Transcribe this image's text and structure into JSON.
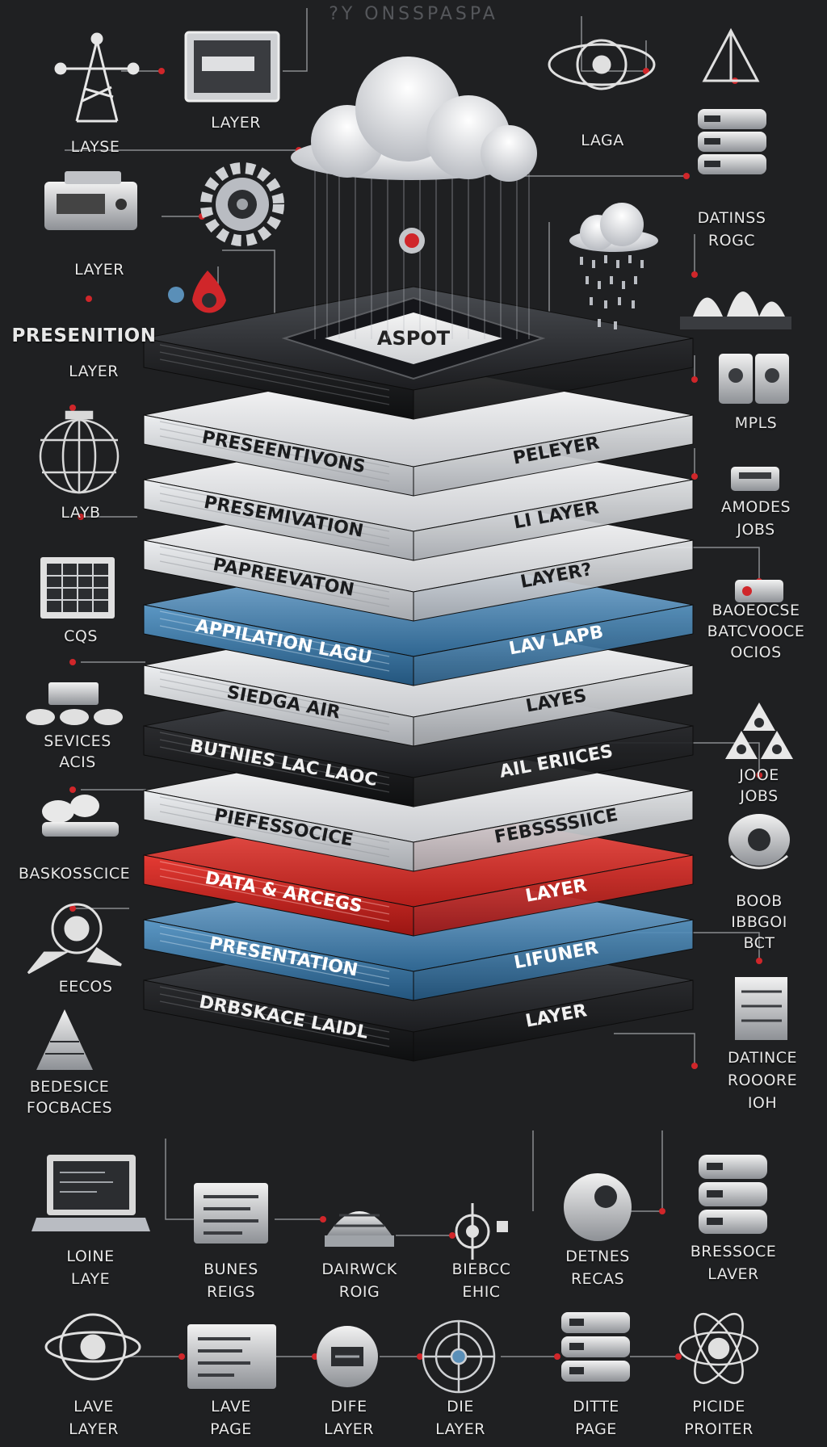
{
  "top_title": "?Y ONSSPASPA",
  "stack": {
    "monitor_text": "ASPOT",
    "layers": [
      {
        "left_text": "PRESEENTIVONS",
        "right_text": "PELEYER"
      },
      {
        "left_text": "PRESEMIVATION",
        "right_text": "LI LAYER"
      },
      {
        "left_text": "PAPREEVATON",
        "right_text": "LAYER?"
      },
      {
        "left_text": "APPILATION LAGU",
        "right_text": "LAV LAPB"
      },
      {
        "left_text": "SIEDGA AIR",
        "right_text": "LAYES"
      },
      {
        "left_text": "BUTNIES LAC LAOC",
        "right_text": "AIL ERIICES"
      },
      {
        "left_text": "PIEFESSOCICE",
        "right_text": "FEBSSSSIICE"
      },
      {
        "left_text": "DATA & ARCEGS",
        "right_text": "LAYER"
      },
      {
        "left_text": "PRESENTATION",
        "right_text": "LIFUNER"
      },
      {
        "left_text": "DRBSKACE LAIDL",
        "right_text": "LAYER"
      }
    ]
  },
  "left_labels": {
    "a": "LAYER",
    "b": "LAYSE",
    "c": "LAYER",
    "d1": "PRESENITION",
    "d2": "LAYER",
    "e": "LAYB",
    "f": "CQS",
    "g1": "SEVICES",
    "g2": "ACIS",
    "h": "BASKOSSCICE",
    "i": "EECOS",
    "j1": "BEDESICE",
    "j2": "FOCBACES"
  },
  "right_labels": {
    "a": "LAGA",
    "b1": "DATINSS",
    "b2": "ROGC",
    "c": "MPLS",
    "d1": "AMODES",
    "d2": "JOBS",
    "e1": "BAOEOCSE",
    "e2": "BATCVOOCE",
    "e3": "OCIOS",
    "f1": "JOOE",
    "f2": "JOBS",
    "g1": "BOOB",
    "g2": "IBBGOI",
    "g3": "BCT",
    "h1": "DATINCE",
    "h2": "ROOORE",
    "h3": "IOH"
  },
  "bottom_row1": {
    "a1": "LOINE",
    "a2": "LAYE",
    "b1": "BUNES",
    "b2": "REIGS",
    "c1": "DAIRWCK",
    "c2": "ROIG",
    "d1": "BIEBCC",
    "d2": "EHIC",
    "e1": "DETNES",
    "e2": "RECAS",
    "f1": "BRESSOCE",
    "f2": "LAVER"
  },
  "bottom_row2": {
    "a1": "LAVE",
    "a2": "LAYER",
    "b1": "LAVE",
    "b2": "PAGE",
    "c1": "DIFE",
    "c2": "LAYER",
    "d1": "DIE",
    "d2": "LAYER",
    "e1": "DITTE",
    "e2": "PAGE",
    "f1": "PICIDE",
    "f2": "PROITER"
  },
  "colors": {
    "background": "#1f2022",
    "dark_slab": "#2c2e31",
    "white_slab": "#e9eaec",
    "blue_slab": "#5a8fb8",
    "red_slab": "#d9342f",
    "connector_red": "#d0262a",
    "line_gray": "#8a8c90"
  },
  "icons": [
    "network-tower-icon",
    "monitor-icon",
    "wifi-pyramid-icon",
    "atom-eye-icon",
    "server-stack-icon",
    "cloud-icon",
    "rain-cloud-icon",
    "gear-icon",
    "router-icon",
    "drop-icon",
    "cloud-rain-icon",
    "triple-dome-icon",
    "globe-cage-icon",
    "twin-drives-icon",
    "grid-panel-icon",
    "tray-icon",
    "printer-icon",
    "cluster-icon",
    "pills-icon",
    "orb-icon",
    "satellite-icon",
    "pyramid-icon",
    "server-rack-icon",
    "laptop-icon",
    "document-icon",
    "hub-icon",
    "target-icon",
    "database-icon",
    "planet-icon"
  ]
}
